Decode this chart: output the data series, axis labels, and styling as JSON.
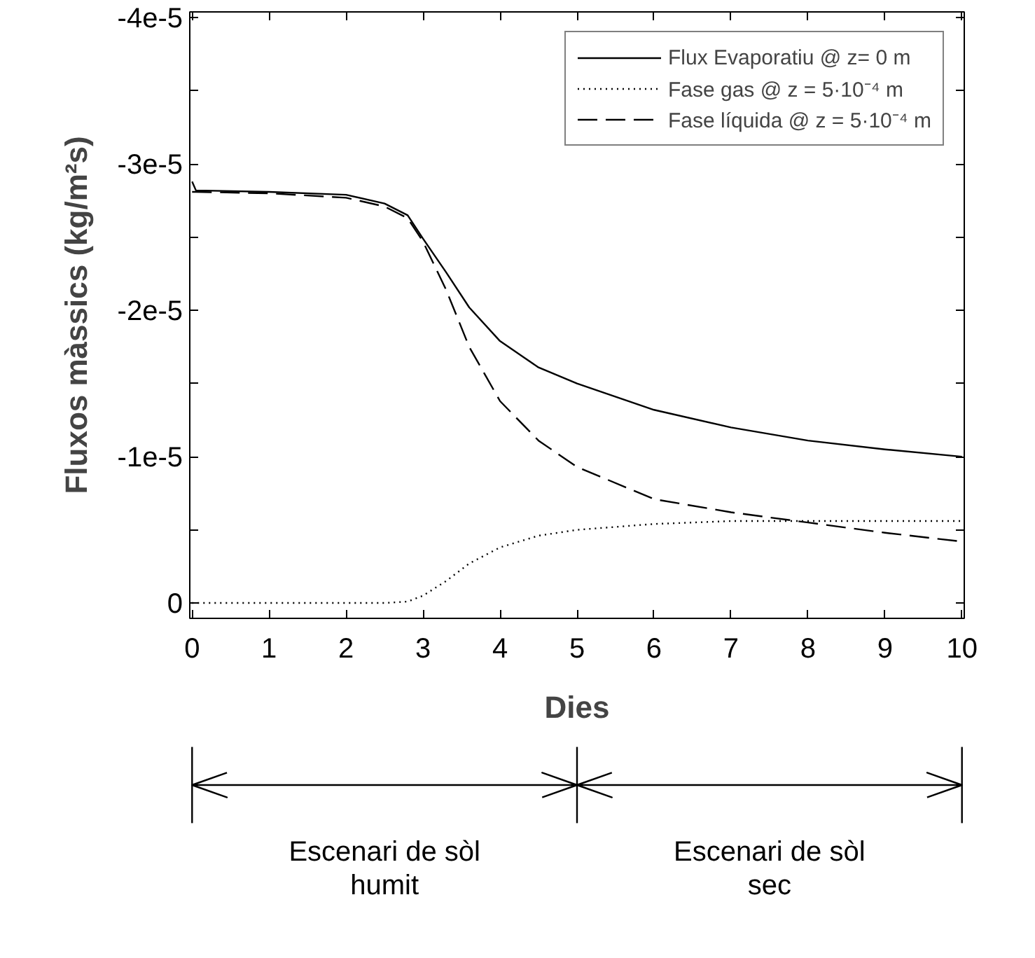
{
  "chart_data": {
    "type": "line",
    "xlabel": "Dies",
    "ylabel": "Fluxos màssics (kg/m²s)",
    "xlim": [
      -0.03,
      10.03
    ],
    "xticks": [
      0,
      1,
      2,
      3,
      4,
      5,
      6,
      7,
      8,
      9,
      10
    ],
    "ylim": [
      1.05e-06,
      -4.04e-05
    ],
    "yticks": [
      {
        "value": 0,
        "label": "0"
      },
      {
        "value": -5e-06,
        "label": null
      },
      {
        "value": -1e-05,
        "label": "-1e-5"
      },
      {
        "value": -1.5e-05,
        "label": null
      },
      {
        "value": -2e-05,
        "label": "-2e-5"
      },
      {
        "value": -2.5e-05,
        "label": null
      },
      {
        "value": -3e-05,
        "label": "-3e-5"
      },
      {
        "value": -3.5e-05,
        "label": null
      },
      {
        "value": -4e-05,
        "label": "-4e-5"
      }
    ],
    "grid": false,
    "legend": "top right",
    "marker": "none",
    "x": [
      0,
      0.05,
      1,
      2,
      2.5,
      2.8,
      3,
      3.3,
      3.6,
      4,
      4.5,
      5,
      6,
      7,
      8,
      9,
      10
    ],
    "series": [
      {
        "name": "Flux Evaporatiu @ z= 0 m",
        "color": "#000000",
        "line_style": "solid",
        "values": [
          -2.88e-05,
          -2.82e-05,
          -2.81e-05,
          -2.79e-05,
          -2.73e-05,
          -2.65e-05,
          -2.49e-05,
          -2.26e-05,
          -2.02e-05,
          -1.79e-05,
          -1.61e-05,
          -1.5e-05,
          -1.32e-05,
          -1.2e-05,
          -1.11e-05,
          -1.05e-05,
          -1e-05
        ]
      },
      {
        "name": "Fase gas @ z = 5·10⁻⁴ m",
        "color": "#000000",
        "line_style": "dotted",
        "values": [
          0,
          0,
          0,
          0,
          0,
          -1e-07,
          -5e-07,
          -1.5e-06,
          -2.7e-06,
          -3.8e-06,
          -4.6e-06,
          -5e-06,
          -5.4e-06,
          -5.6e-06,
          -5.6e-06,
          -5.6e-06,
          -5.6e-06
        ]
      },
      {
        "name": "Fase líquida @ z = 5·10⁻⁴ m",
        "color": "#000000",
        "line_style": "dashed",
        "values": [
          -2.81e-05,
          -2.81e-05,
          -2.8e-05,
          -2.77e-05,
          -2.71e-05,
          -2.63e-05,
          -2.47e-05,
          -2.14e-05,
          -1.75e-05,
          -1.38e-05,
          -1.11e-05,
          -9.3e-06,
          -7.1e-06,
          -6.2e-06,
          -5.5e-06,
          -4.8e-06,
          -4.2e-06
        ]
      }
    ],
    "annotations": [
      "Escenari de sòl humit",
      "Escenari de sòl sec"
    ]
  }
}
